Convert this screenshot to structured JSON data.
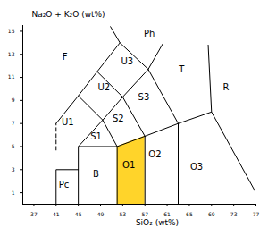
{
  "chart_data": {
    "type": "line",
    "x_label": "SiO₂ (wt%)",
    "y_label": "Na₂O + K₂O (wt%)",
    "xlim": [
      35,
      77
    ],
    "ylim": [
      0,
      15.5
    ],
    "xticks": [
      37,
      41,
      45,
      49,
      53,
      57,
      61,
      65,
      69,
      73,
      77
    ],
    "yticks": [
      1,
      3,
      5,
      7,
      9,
      11,
      13,
      15
    ],
    "grid": false,
    "series": [
      {
        "type": "area",
        "color": "#ffd42a",
        "x": [
          52,
          57
        ],
        "y": [
          5,
          5.9
        ]
      },
      {
        "type": "line",
        "color": "#000000",
        "line_style": "solid",
        "x": [
          41,
          41,
          45
        ],
        "y": [
          0,
          3,
          3
        ]
      },
      {
        "type": "line",
        "color": "#000000",
        "line_style": "solid",
        "x": [
          45,
          45,
          52,
          57,
          63,
          69,
          77
        ],
        "y": [
          0,
          5,
          5,
          5.9,
          7,
          8,
          1
        ]
      },
      {
        "type": "line",
        "color": "#000000",
        "line_style": "solid",
        "x": [
          52,
          52
        ],
        "y": [
          0,
          5
        ]
      },
      {
        "type": "line",
        "color": "#000000",
        "line_style": "solid",
        "x": [
          57,
          57
        ],
        "y": [
          0,
          5.9
        ]
      },
      {
        "type": "line",
        "color": "#000000",
        "line_style": "solid",
        "x": [
          63,
          63
        ],
        "y": [
          0,
          7
        ]
      },
      {
        "type": "line",
        "color": "#000000",
        "line_style": "solid",
        "x": [
          45,
          49.4,
          52
        ],
        "y": [
          5,
          7.3,
          5
        ]
      },
      {
        "type": "line",
        "color": "#000000",
        "line_style": "solid",
        "x": [
          49.4,
          53,
          57
        ],
        "y": [
          7.3,
          9.3,
          5.9
        ]
      },
      {
        "type": "line",
        "color": "#000000",
        "line_style": "solid",
        "x": [
          53,
          57.6,
          63
        ],
        "y": [
          9.3,
          11.7,
          7
        ]
      },
      {
        "type": "line",
        "color": "#000000",
        "line_style": "solid",
        "x": [
          41,
          45,
          49.4
        ],
        "y": [
          7,
          9.4,
          7.3
        ]
      },
      {
        "type": "line",
        "color": "#000000",
        "line_style": "solid",
        "x": [
          45,
          48.4,
          53
        ],
        "y": [
          9.4,
          11.5,
          9.3
        ]
      },
      {
        "type": "line",
        "color": "#000000",
        "line_style": "solid",
        "x": [
          48.4,
          52.5,
          57.6
        ],
        "y": [
          11.5,
          14,
          11.7
        ]
      },
      {
        "type": "line",
        "color": "#000000",
        "line_style": "solid",
        "x": [
          52.5,
          50.8
        ],
        "y": [
          14,
          15.4
        ]
      },
      {
        "type": "line",
        "color": "#000000",
        "line_style": "solid",
        "x": [
          57.6,
          60.2
        ],
        "y": [
          11.7,
          13.9
        ]
      },
      {
        "type": "line",
        "color": "#000000",
        "line_style": "solid",
        "x": [
          69,
          68.4
        ],
        "y": [
          8,
          13.8
        ]
      },
      {
        "type": "line",
        "color": "#000000",
        "line_style": "dashed",
        "x": [
          41,
          41
        ],
        "y": [
          4.7,
          7
        ]
      }
    ],
    "annotations": [
      {
        "text": "F",
        "x": 42.6,
        "y": 12.8
      },
      {
        "text": "Ph",
        "x": 57.8,
        "y": 14.8
      },
      {
        "text": "U3",
        "x": 53.8,
        "y": 12.4
      },
      {
        "text": "T",
        "x": 63.6,
        "y": 11.7
      },
      {
        "text": "U2",
        "x": 49.6,
        "y": 10.1
      },
      {
        "text": "S3",
        "x": 56.8,
        "y": 9.3
      },
      {
        "text": "R",
        "x": 71.6,
        "y": 10.1
      },
      {
        "text": "U1",
        "x": 43.1,
        "y": 7.1
      },
      {
        "text": "S2",
        "x": 52.2,
        "y": 7.4
      },
      {
        "text": "S1",
        "x": 48.2,
        "y": 5.9
      },
      {
        "text": "O2",
        "x": 58.8,
        "y": 4.3
      },
      {
        "text": "O3",
        "x": 66.3,
        "y": 3.2
      },
      {
        "text": "O1",
        "x": 54.1,
        "y": 3.4
      },
      {
        "text": "B",
        "x": 48.2,
        "y": 2.6
      },
      {
        "text": "Pc",
        "x": 42.4,
        "y": 1.7
      }
    ]
  }
}
